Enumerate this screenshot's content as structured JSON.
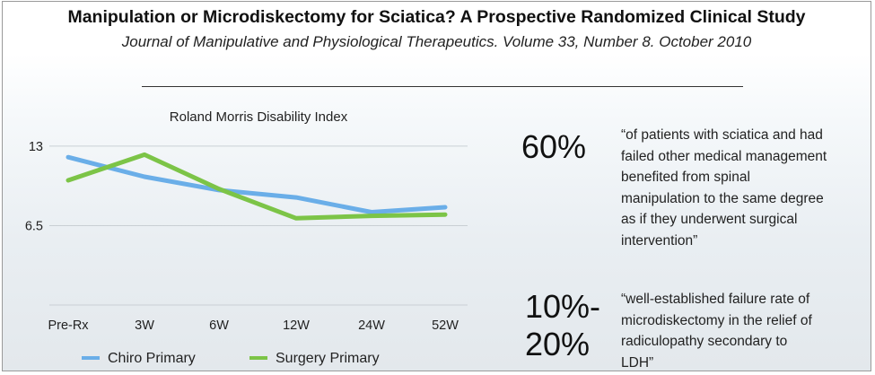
{
  "header": {
    "title": "Manipulation or Microdiskectomy for Sciatica? A Prospective Randomized Clinical Study",
    "subtitle": "Journal of Manipulative and Physiological Therapeutics.  Volume 33,  Number 8.  October 2010"
  },
  "chart_data": {
    "type": "line",
    "title": "Roland Morris Disability Index",
    "categories": [
      "Pre-Rx",
      "3W",
      "6W",
      "12W",
      "24W",
      "52W"
    ],
    "y_ticks": [
      "13",
      "6.5"
    ],
    "y_tick_values": [
      13,
      6.5
    ],
    "ylim": [
      0,
      13.8
    ],
    "grid": true,
    "series": [
      {
        "name": "Chiro Primary",
        "color": "#6aaee8",
        "values": [
          12.1,
          10.5,
          9.4,
          8.8,
          7.6,
          8.0
        ]
      },
      {
        "name": "Surgery Primary",
        "color": "#7cc447",
        "values": [
          10.2,
          12.3,
          9.5,
          7.1,
          7.3,
          7.4
        ]
      }
    ]
  },
  "stats": [
    {
      "value": "60%",
      "quote_lines": [
        "“of patients with sciatica and had",
        "failed other medical management",
        "benefited from spinal",
        "manipulation to the same degree",
        "as if they underwent surgical",
        "intervention”"
      ]
    },
    {
      "value_lines": [
        "10%-",
        "20%"
      ],
      "quote_lines": [
        "“well-established failure rate of",
        "microdiskectomy in the relief of",
        "radiculopathy secondary to",
        "LDH”"
      ]
    }
  ]
}
